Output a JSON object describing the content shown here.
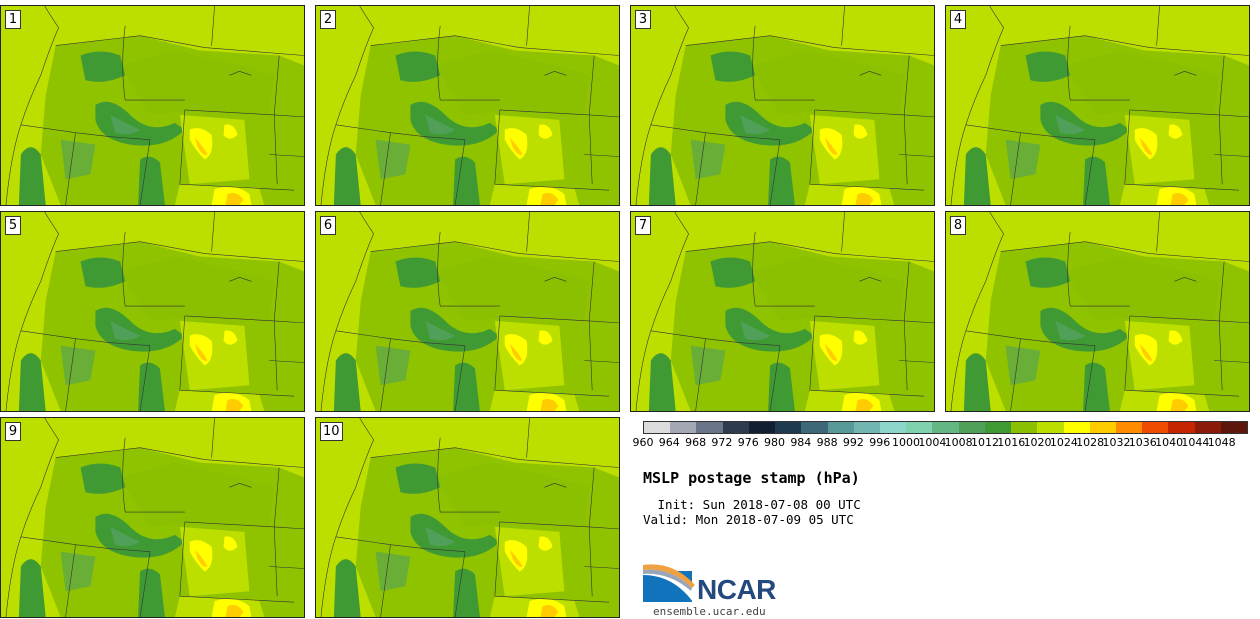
{
  "figure": {
    "title": "MSLP postage stamp (hPa)",
    "init": " Init: Sun 2018-07-08 00 UTC",
    "valid": "Valid: Mon 2018-07-09 05 UTC"
  },
  "panels": [
    {
      "label": "1"
    },
    {
      "label": "2"
    },
    {
      "label": "3"
    },
    {
      "label": "4"
    },
    {
      "label": "5"
    },
    {
      "label": "6"
    },
    {
      "label": "7"
    },
    {
      "label": "8"
    },
    {
      "label": "9"
    },
    {
      "label": "10"
    }
  ],
  "colorbar": {
    "ticks": [
      "960",
      "964",
      "968",
      "972",
      "976",
      "980",
      "984",
      "988",
      "992",
      "996",
      "1000",
      "1004",
      "1008",
      "1012",
      "1016",
      "1020",
      "1024",
      "1028",
      "1032",
      "1036",
      "1040",
      "1044",
      "1048"
    ],
    "colors": [
      "#dcdcdc",
      "#a4a8b4",
      "#6a7488",
      "#2e3a4e",
      "#121e32",
      "#1e3a4e",
      "#3e6878",
      "#589a9a",
      "#72b6b2",
      "#8cd6cc",
      "#7ed2ae",
      "#64b682",
      "#50a05a",
      "#409a34",
      "#8ac000",
      "#bddf00",
      "#ffff00",
      "#ffcc00",
      "#ff8c00",
      "#ee4a00",
      "#c42400",
      "#8c1a08",
      "#5c160c"
    ]
  },
  "logo": {
    "name": "NCAR",
    "url": "ensemble.ucar.edu"
  },
  "map_colors": {
    "background": "#bddf00",
    "mid": "#8ac000",
    "low": "#409a34",
    "lower": "#50a05a",
    "high": "#ffff00",
    "highest": "#ffcc00"
  }
}
